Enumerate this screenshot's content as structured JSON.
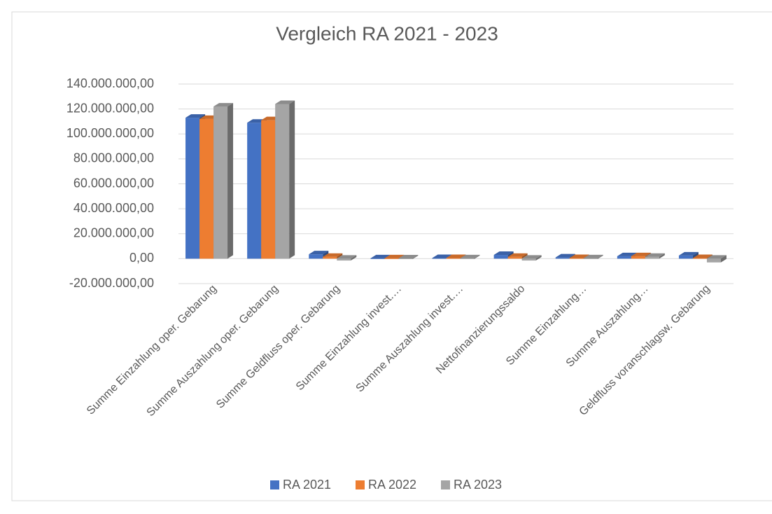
{
  "chart_data": {
    "type": "bar3d",
    "title": "Vergleich RA 2021 - 2023",
    "categories": [
      "Summe Einzahlung oper. Gebarung",
      "Summe Auszahlung oper. Gebarung",
      "Summe Geldfluss oper. Gebarung",
      "Summe Einzahlung invest.…",
      "Summe Auszahlung invest.…",
      "Nettofinanzierungssaldo",
      "Summe Einzahlung…",
      "Summe Auszahlung…",
      "Geldfluss voranschlagsw. Gebarung"
    ],
    "series": [
      {
        "name": "RA 2021",
        "color": "#4472c4",
        "values": [
          113000000,
          109000000,
          3500000,
          300000,
          500000,
          3000000,
          1000000,
          2000000,
          2500000
        ]
      },
      {
        "name": "RA 2022",
        "color": "#ed7d31",
        "values": [
          112000000,
          111000000,
          1500000,
          300000,
          500000,
          1500000,
          500000,
          2000000,
          500000
        ]
      },
      {
        "name": "RA 2023",
        "color": "#a5a5a5",
        "values": [
          122000000,
          124000000,
          -1500000,
          200000,
          300000,
          -1500000,
          300000,
          1500000,
          -3000000
        ]
      }
    ],
    "ylim": [
      -20000000,
      140000000
    ],
    "yticks": [
      {
        "value": -20000000,
        "label": "-20.000.000,00"
      },
      {
        "value": 0,
        "label": "0,00"
      },
      {
        "value": 20000000,
        "label": "20.000.000,00"
      },
      {
        "value": 40000000,
        "label": "40.000.000,00"
      },
      {
        "value": 60000000,
        "label": "60.000.000,00"
      },
      {
        "value": 80000000,
        "label": "80.000.000,00"
      },
      {
        "value": 100000000,
        "label": "100.000.000,00"
      },
      {
        "value": 120000000,
        "label": "120.000.000,00"
      },
      {
        "value": 140000000,
        "label": "140.000.000,00"
      }
    ],
    "grid": true,
    "legend": "bottom"
  }
}
